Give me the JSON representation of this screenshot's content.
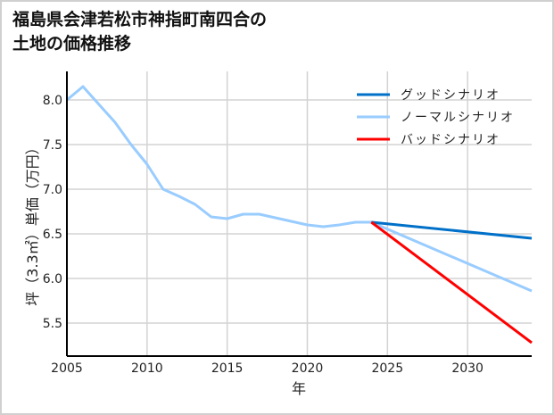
{
  "title_line1": "福島県会津若松市神指町南四合の",
  "title_line2": "土地の価格推移",
  "chart_data": {
    "type": "line",
    "title": "福島県会津若松市神指町南四合の土地の価格推移",
    "xlabel": "年",
    "ylabel": "坪（3.3㎡）単価（万円）",
    "xlim": [
      2005,
      2034
    ],
    "ylim": [
      5.2,
      8.3
    ],
    "x_ticks": [
      "2005",
      "2010",
      "2015",
      "2020",
      "2025",
      "2030"
    ],
    "y_ticks": [
      "5.5",
      "6.0",
      "6.5",
      "7.0",
      "7.5",
      "8.0"
    ],
    "grid": true,
    "legend_position": "upper right",
    "series": [
      {
        "name": "ノーマルシナリオ",
        "color": "#99ccff",
        "x": [
          2005,
          2006,
          2007,
          2008,
          2009,
          2010,
          2011,
          2012,
          2013,
          2014,
          2015,
          2016,
          2017,
          2018,
          2019,
          2020,
          2021,
          2022,
          2023,
          2024,
          2034
        ],
        "values": [
          8.0,
          8.15,
          7.95,
          7.75,
          7.5,
          7.28,
          7.0,
          6.92,
          6.83,
          6.69,
          6.67,
          6.72,
          6.72,
          6.68,
          6.64,
          6.6,
          6.58,
          6.6,
          6.63,
          6.63,
          5.86
        ]
      },
      {
        "name": "グッドシナリオ",
        "color": "#0070c8",
        "x": [
          2024,
          2034
        ],
        "values": [
          6.63,
          6.45
        ]
      },
      {
        "name": "バッドシナリオ",
        "color": "#ff0000",
        "x": [
          2024,
          2034
        ],
        "values": [
          6.63,
          5.28
        ]
      }
    ]
  },
  "legend": [
    {
      "label": "グッドシナリオ",
      "color": "#0070c8"
    },
    {
      "label": "ノーマルシナリオ",
      "color": "#99ccff"
    },
    {
      "label": "バッドシナリオ",
      "color": "#ff0000"
    }
  ]
}
